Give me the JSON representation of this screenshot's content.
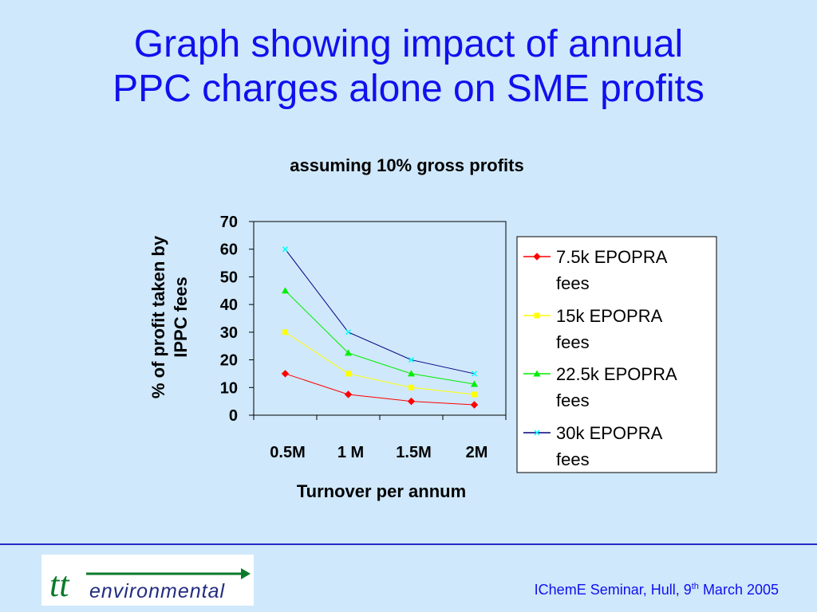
{
  "slide": {
    "title_line1": "Graph showing impact of annual",
    "title_line2": "PPC charges alone on SME profits",
    "footer_prefix": "IChemE Seminar, Hull, 9",
    "footer_sup": "th",
    "footer_suffix": " March 2005",
    "logo_text_tt": "tt",
    "logo_text_rest": "environmental"
  },
  "colors": {
    "background": "#cfe8fb",
    "title": "#1010ee",
    "series": [
      "#ff0000",
      "#ffff00",
      "#00ee00",
      "#00ffff"
    ]
  },
  "chart_data": {
    "type": "line",
    "title": "assuming 10% gross profits",
    "xlabel": "Turnover per annum",
    "ylabel_lines": [
      "% of profit taken by",
      "IPPC fees"
    ],
    "categories": [
      "0.5M",
      "1 M",
      "1.5M",
      "2M"
    ],
    "ylim": [
      0,
      70
    ],
    "yticks": [
      0,
      10,
      20,
      30,
      40,
      50,
      60,
      70
    ],
    "grid": false,
    "legend_position": "right",
    "series": [
      {
        "name_lines": [
          "7.5k EPOPRA",
          "fees"
        ],
        "marker": "diamond",
        "values": [
          15,
          7.5,
          5,
          3.75
        ]
      },
      {
        "name_lines": [
          "15k EPOPRA",
          "fees"
        ],
        "marker": "square",
        "values": [
          30,
          15,
          10,
          7.5
        ]
      },
      {
        "name_lines": [
          "22.5k EPOPRA",
          "fees"
        ],
        "marker": "triangle",
        "values": [
          45,
          22.5,
          15,
          11.25
        ]
      },
      {
        "name_lines": [
          "30k EPOPRA",
          "fees"
        ],
        "marker": "x",
        "values": [
          60,
          30,
          20,
          15
        ]
      }
    ]
  }
}
